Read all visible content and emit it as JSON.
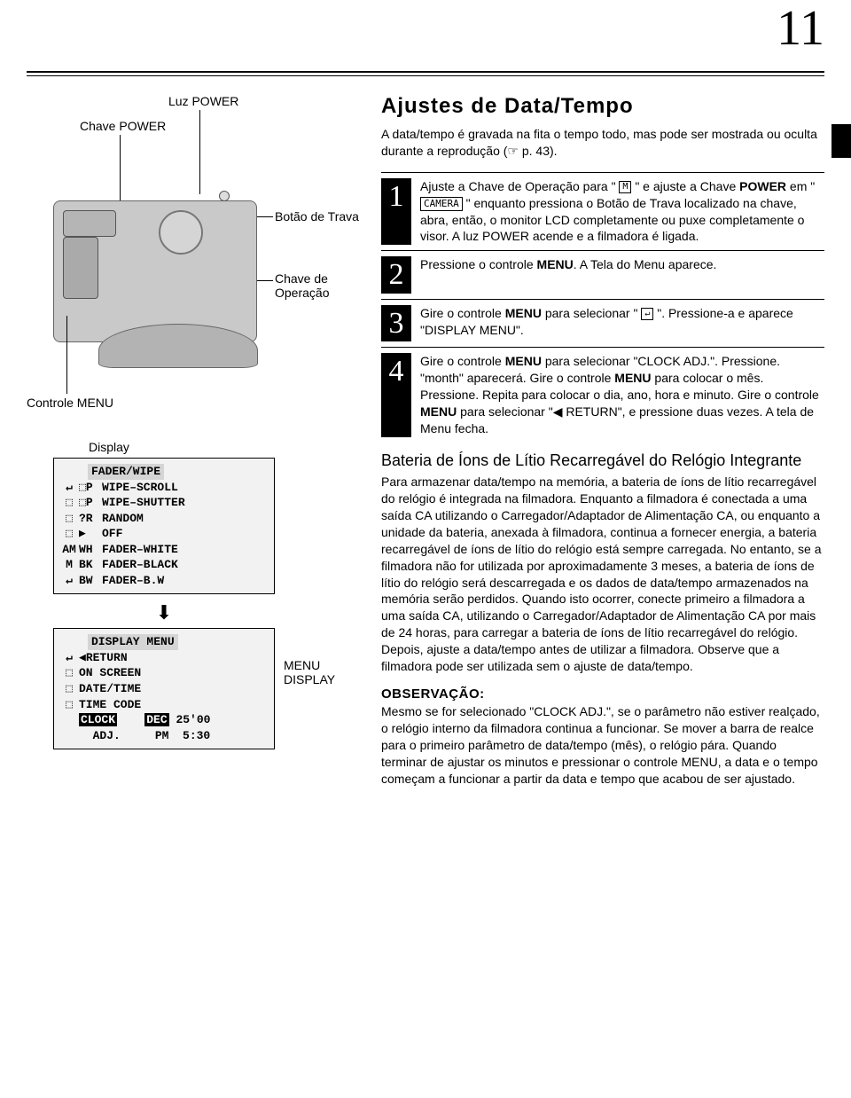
{
  "page_number": "11",
  "diagram": {
    "labels": {
      "luz_power": "Luz POWER",
      "chave_power": "Chave POWER",
      "botao_trava": "Botão de Trava",
      "chave_operacao": "Chave de Operação",
      "controle_menu": "Controle MENU",
      "display": "Display",
      "menu_display": "MENU DISPLAY"
    }
  },
  "lcd1": {
    "title": "FADER/WIPE",
    "rows": [
      {
        "icon": "⬚P",
        "text": "WIPE–SCROLL"
      },
      {
        "icon": "⬚P",
        "text": "WIPE–SHUTTER"
      },
      {
        "icon": "?R",
        "text": "RANDOM"
      },
      {
        "icon": "▶",
        "text": "OFF"
      },
      {
        "icon": "WH",
        "text": "FADER–WHITE"
      },
      {
        "icon": "BK",
        "text": "FADER–BLACK"
      },
      {
        "icon": "BW",
        "text": "FADER–B.W"
      }
    ],
    "side_icons": [
      "↵",
      "⬚",
      "⬚",
      "⬚",
      "AM",
      "M",
      "↵"
    ]
  },
  "lcd2": {
    "title": "DISPLAY MENU",
    "rows": [
      "◀RETURN",
      "ON SCREEN",
      "DATE/TIME",
      "TIME CODE"
    ],
    "clock_row_label": "CLOCK",
    "clock_row_month": "DEC",
    "clock_row_date": "25'00",
    "adj_row_label": "  ADJ.",
    "adj_row_time": "PM  5:30",
    "side_icons": [
      "↵",
      "⬚",
      "⬚",
      "⬚",
      "AM",
      "M",
      "↵"
    ]
  },
  "right": {
    "title": "Ajustes de Data/Tempo",
    "intro": "A data/tempo é gravada na fita o tempo todo, mas pode ser mostrada ou oculta durante a reprodução (☞ p. 43).",
    "steps": [
      {
        "n": "1",
        "html": "Ajuste a Chave de Operação para \" <span class='icon-square'>M</span> \" e ajuste a Chave <b>POWER</b> em \" <span class='icon-box'>CAMERA</span> \" enquanto pressiona o Botão de Trava localizado na chave, abra, então, o monitor LCD completamente ou puxe completamente o visor. A luz POWER acende e a filmadora é ligada."
      },
      {
        "n": "2",
        "html": "Pressione o controle <b>MENU</b>. A Tela do Menu aparece."
      },
      {
        "n": "3",
        "html": "Gire o controle <b>MENU</b> para selecionar \" <span class='icon-square'>↵</span> \". Pressione-a e aparece \"DISPLAY MENU\"."
      },
      {
        "n": "4",
        "html": "Gire o controle <b>MENU</b> para selecionar \"CLOCK ADJ.\". Pressione. \"month\" aparecerá. Gire o controle <b>MENU</b> para colocar o mês. Pressione. Repita para colocar o dia, ano, hora e minuto. Gire o controle <b>MENU</b> para selecionar \"◀ RETURN\", e pressione duas vezes. A tela de Menu fecha."
      }
    ],
    "battery_title": "Bateria de Íons de Lítio Recarregável do Relógio Integrante",
    "battery_body": "Para armazenar data/tempo na memória, a bateria de íons de lítio recarregável do relógio é integrada na filmadora. Enquanto a filmadora é conectada a uma saída CA utilizando o Carregador/Adaptador de Alimentação CA, ou enquanto a unidade da bateria, anexada à filmadora, continua a fornecer energia, a bateria recarregável de íons de lítio do relógio está sempre carregada. No entanto, se a filmadora não for utilizada por aproximadamente 3 meses, a bateria de íons de lítio do relógio será descarregada e os dados de data/tempo armazenados na memória serão perdidos. Quando isto ocorrer, conecte primeiro a filmadora a uma saída CA, utilizando o Carregador/Adaptador de Alimentação CA por mais de 24 horas, para carregar a bateria de íons de lítio recarregável do relógio. Depois, ajuste a data/tempo antes de utilizar a filmadora. Observe que a filmadora pode ser utilizada sem o ajuste de data/tempo.",
    "obs_title": "OBSERVAÇÃO:",
    "obs_body": "Mesmo se for selecionado \"CLOCK ADJ.\", se o parâmetro não estiver realçado, o relógio interno da filmadora continua a funcionar. Se mover a barra de realce para o primeiro parâmetro de data/tempo (mês), o relógio pára. Quando terminar de ajustar os minutos e pressionar o controle MENU, a data e o tempo começam a funcionar a partir da data e tempo que acabou de ser ajustado."
  },
  "colors": {
    "bg": "#ffffff",
    "text": "#000000",
    "lcd_bg": "#f2f2f2",
    "camera": "#c9c9c9"
  }
}
